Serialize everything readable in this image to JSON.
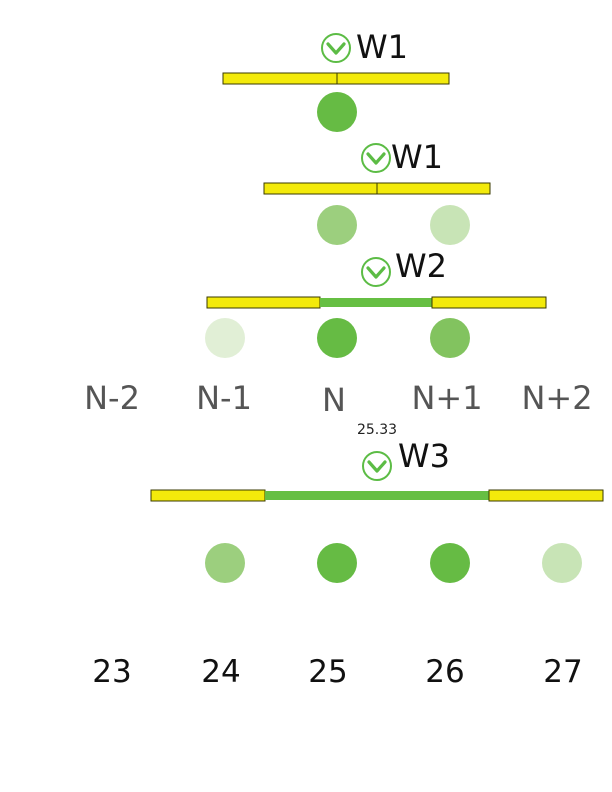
{
  "colors": {
    "bar_fill": "#f3ea0b",
    "bar_stroke": "#3a3a00",
    "link_green": "#66bf43",
    "dot_full": "#66bb44",
    "dot_strong": "#82c35f",
    "dot_medium": "#9ccf7e",
    "dot_light": "#c8e4b6",
    "dot_faint": "#e1efd6",
    "icon_green": "#5cbc45"
  },
  "panels": [
    {
      "label": "W1",
      "icon": "chevron-down-circle-icon",
      "bars": [
        "N-1",
        "N"
      ],
      "link": null,
      "dots": [
        {
          "col": "N",
          "shade": "full"
        }
      ]
    },
    {
      "label": "W1",
      "icon": "chevron-down-circle-icon",
      "bars": [
        "N-0.5",
        "N+0.5"
      ],
      "link": null,
      "dots": [
        {
          "col": "N",
          "shade": "medium"
        },
        {
          "col": "N+1",
          "shade": "light"
        }
      ]
    },
    {
      "label": "W2",
      "icon": "chevron-down-circle-icon",
      "bars": [
        "N-1",
        "N+1"
      ],
      "link": [
        "N",
        "N+1"
      ],
      "dots": [
        {
          "col": "N-1",
          "shade": "faint"
        },
        {
          "col": "N",
          "shade": "full"
        },
        {
          "col": "N+1",
          "shade": "strong"
        }
      ]
    }
  ],
  "index_labels": [
    "N-2",
    "N-1",
    "N",
    "N+1",
    "N+2"
  ],
  "marker_value": "25.33",
  "bottom_panel": {
    "label": "W3",
    "icon": "chevron-down-circle-icon",
    "bars": [
      "N-2",
      "N+2"
    ],
    "link": [
      "N-1",
      "N+2"
    ],
    "dots": [
      {
        "col": "N-1",
        "shade": "medium"
      },
      {
        "col": "N",
        "shade": "full"
      },
      {
        "col": "N+1",
        "shade": "full"
      },
      {
        "col": "N+2",
        "shade": "light"
      }
    ]
  },
  "number_labels": [
    "23",
    "24",
    "25",
    "26",
    "27"
  ]
}
